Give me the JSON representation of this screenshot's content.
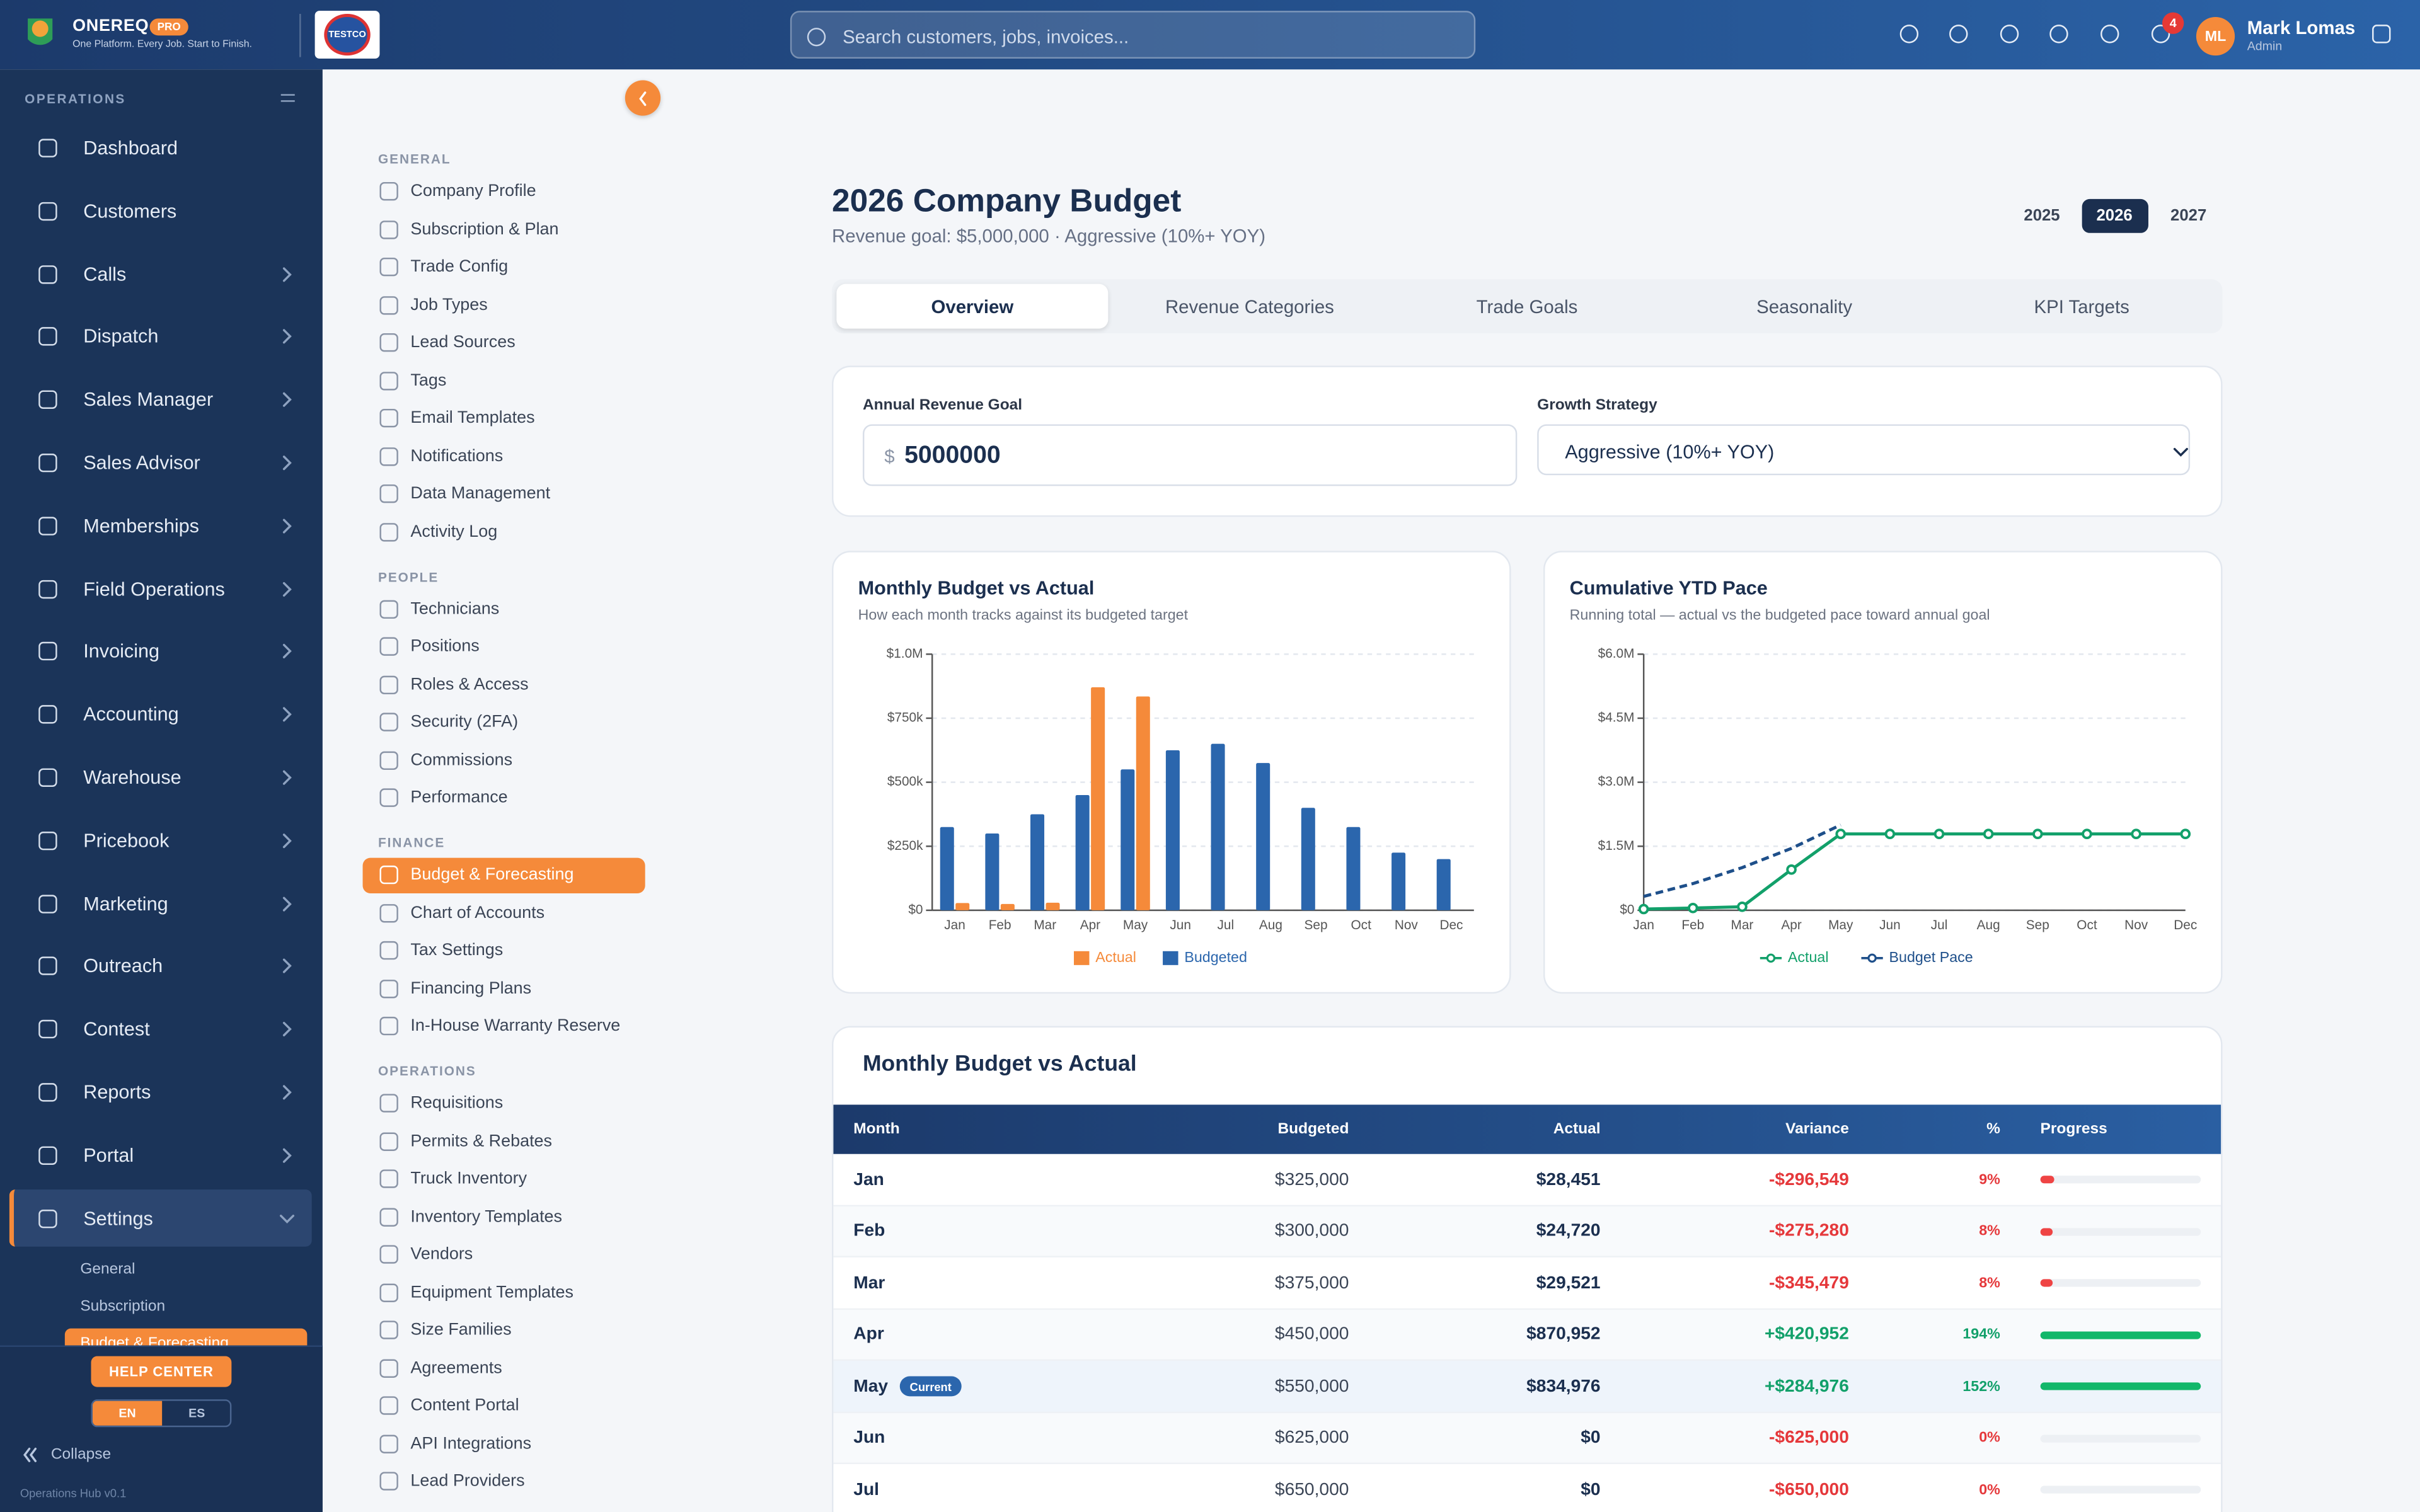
{
  "header": {
    "brand": "ONEREQ",
    "badge": "PRO",
    "tagline": "One Platform. Every Job. Start to Finish.",
    "company_logo": "TESTCO",
    "search_placeholder": "Search customers, jobs, invoices...",
    "notification_count": "4",
    "avatar": "ML",
    "user_name": "Mark Lomas",
    "user_role": "Admin"
  },
  "sidebar": {
    "section": "OPERATIONS",
    "items": [
      "Dashboard",
      "Customers",
      "Calls",
      "Dispatch",
      "Sales Manager",
      "Sales Advisor",
      "Memberships",
      "Field Operations",
      "Invoicing",
      "Accounting",
      "Warehouse",
      "Pricebook",
      "Marketing",
      "Outreach",
      "Contest",
      "Reports",
      "Portal",
      "Settings"
    ],
    "subitems": [
      "General",
      "Subscription",
      "Budget & Forecasting"
    ],
    "help": "HELP CENTER",
    "languages": [
      "EN",
      "ES"
    ],
    "collapse": "Collapse",
    "version": "Operations Hub v0.1"
  },
  "settings_nav": {
    "sections": [
      {
        "title": "GENERAL",
        "items": [
          "Company Profile",
          "Subscription & Plan",
          "Trade Config",
          "Job Types",
          "Lead Sources",
          "Tags",
          "Email Templates",
          "Notifications",
          "Data Management",
          "Activity Log"
        ]
      },
      {
        "title": "PEOPLE",
        "items": [
          "Technicians",
          "Positions",
          "Roles & Access",
          "Security (2FA)",
          "Commissions",
          "Performance"
        ]
      },
      {
        "title": "FINANCE",
        "items": [
          "Budget & Forecasting",
          "Chart of Accounts",
          "Tax Settings",
          "Financing Plans",
          "In-House Warranty Reserve"
        ]
      },
      {
        "title": "OPERATIONS",
        "items": [
          "Requisitions",
          "Permits & Rebates",
          "Truck Inventory",
          "Inventory Templates",
          "Vendors",
          "Equipment Templates",
          "Size Families",
          "Agreements",
          "Content Portal",
          "API Integrations",
          "Lead Providers"
        ]
      }
    ]
  },
  "page": {
    "title": "2026 Company Budget",
    "subtitle": "Revenue goal: $5,000,000 · Aggressive (10%+ YOY)",
    "years": [
      "2025",
      "2026",
      "2027"
    ],
    "tabs": [
      "Overview",
      "Revenue Categories",
      "Trade Goals",
      "Seasonality",
      "KPI Targets"
    ],
    "form": {
      "goal_label": "Annual Revenue Goal",
      "currency": "$",
      "goal_value": "5000000",
      "strategy_label": "Growth Strategy",
      "strategy_value": "Aggressive (10%+ YOY)"
    }
  },
  "charts": [
    {
      "type": "bar",
      "title": "Monthly Budget vs Actual",
      "subtitle": "How each month tracks against its budgeted target",
      "categories": [
        "Jan",
        "Feb",
        "Mar",
        "Apr",
        "May",
        "Jun",
        "Jul",
        "Aug",
        "Sep",
        "Oct",
        "Nov",
        "Dec"
      ],
      "series": [
        {
          "name": "Actual",
          "color": "#f58a3a",
          "values": [
            28451,
            24720,
            29521,
            870952,
            834976,
            0,
            0,
            0,
            0,
            0,
            0,
            0
          ]
        },
        {
          "name": "Budgeted",
          "color": "#2b66ad",
          "values": [
            325000,
            300000,
            375000,
            450000,
            550000,
            625000,
            650000,
            575000,
            400000,
            325000,
            225000,
            200000
          ]
        }
      ],
      "ylim": [
        0,
        1000000
      ],
      "yticks": [
        {
          "value": 0,
          "label": "$0"
        },
        {
          "value": 250000,
          "label": "$250k"
        },
        {
          "value": 500000,
          "label": "$500k"
        },
        {
          "value": 750000,
          "label": "$750k"
        },
        {
          "value": 1000000,
          "label": "$1.0M"
        }
      ],
      "grid": true,
      "legend": "bottom"
    },
    {
      "type": "line",
      "title": "Cumulative YTD Pace",
      "subtitle": "Running total — actual vs the budgeted pace toward annual goal",
      "categories": [
        "Jan",
        "Feb",
        "Mar",
        "Apr",
        "May",
        "Jun",
        "Jul",
        "Aug",
        "Sep",
        "Oct",
        "Nov",
        "Dec"
      ],
      "series": [
        {
          "name": "Actual",
          "color": "#12a06a",
          "values": [
            28451,
            53171,
            82692,
            953644,
            1788620,
            1788620,
            1788620,
            1788620,
            1788620,
            1788620,
            1788620,
            1788620
          ]
        },
        {
          "name": "Budget Pace",
          "color": "#1e4f8a",
          "dashed": true,
          "values": [
            325000,
            625000,
            1000000,
            1450000,
            2000000,
            null,
            null,
            null,
            null,
            null,
            null,
            null
          ]
        }
      ],
      "ylim": [
        0,
        6000000
      ],
      "yticks": [
        {
          "value": 0,
          "label": "$0"
        },
        {
          "value": 1500000,
          "label": "$1.5M"
        },
        {
          "value": 3000000,
          "label": "$3.0M"
        },
        {
          "value": 4500000,
          "label": "$4.5M"
        },
        {
          "value": 6000000,
          "label": "$6.0M"
        }
      ],
      "grid": true,
      "legend": "bottom"
    }
  ],
  "table": {
    "title": "Monthly Budget vs Actual",
    "columns": [
      "Month",
      "Budgeted",
      "Actual",
      "Variance",
      "%",
      "Progress"
    ],
    "current_badge": "Current",
    "rows": [
      [
        "Jan",
        "$325,000",
        "$28,451",
        "-$296,549",
        "9%"
      ],
      [
        "Feb",
        "$300,000",
        "$24,720",
        "-$275,280",
        "8%"
      ],
      [
        "Mar",
        "$375,000",
        "$29,521",
        "-$345,479",
        "8%"
      ],
      [
        "Apr",
        "$450,000",
        "$870,952",
        "+$420,952",
        "194%"
      ],
      [
        "May",
        "$550,000",
        "$834,976",
        "+$284,976",
        "152%"
      ],
      [
        "Jun",
        "$625,000",
        "$0",
        "-$625,000",
        "0%"
      ],
      [
        "Jul",
        "$650,000",
        "$0",
        "-$650,000",
        "0%"
      ]
    ],
    "progress": [
      9,
      8,
      8,
      194,
      152,
      0,
      0
    ]
  }
}
